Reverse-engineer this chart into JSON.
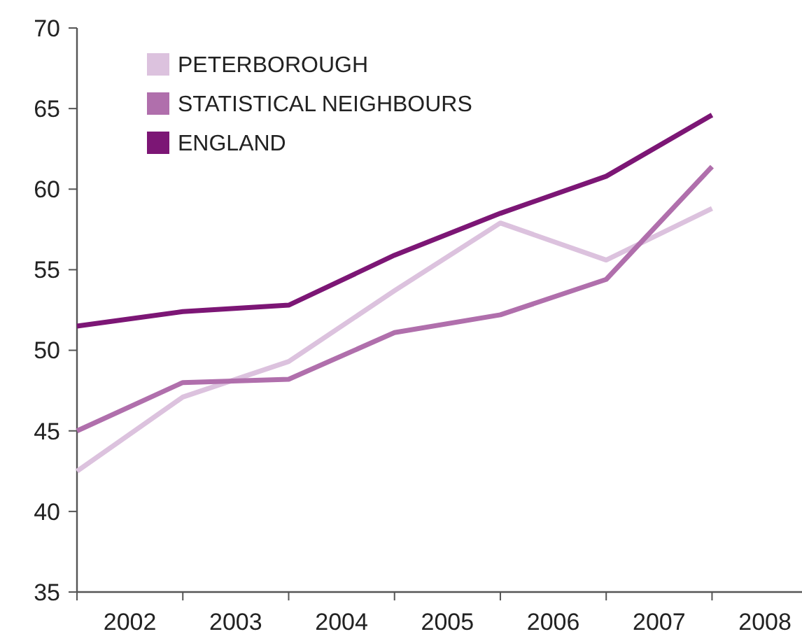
{
  "chart_data": {
    "type": "line",
    "x": [
      2002,
      2003,
      2004,
      2005,
      2006,
      2007,
      2008
    ],
    "series": [
      {
        "name": "PETERBOROUGH",
        "color": "#dcc2de",
        "values": [
          42.5,
          47.1,
          49.3,
          53.7,
          57.9,
          55.6,
          58.8
        ]
      },
      {
        "name": "STATISTICAL NEIGHBOURS",
        "color": "#b06fac",
        "values": [
          45.0,
          48.0,
          48.2,
          51.1,
          52.2,
          54.4,
          61.4
        ]
      },
      {
        "name": "ENGLAND",
        "color": "#7c1675",
        "values": [
          51.5,
          52.4,
          52.8,
          55.9,
          58.5,
          60.8,
          64.6
        ]
      }
    ],
    "xlim": [
      2002,
      2008.85
    ],
    "xticks": [
      {
        "value": 2002,
        "label": null
      },
      {
        "value": 2003,
        "label": null
      },
      {
        "value": 2004,
        "label": null
      },
      {
        "value": 2005,
        "label": null
      },
      {
        "value": 2006,
        "label": null
      },
      {
        "value": 2007,
        "label": null
      },
      {
        "value": 2008,
        "label": null
      },
      {
        "value": 2002.5,
        "label": "2002"
      },
      {
        "value": 2003.5,
        "label": "2003"
      },
      {
        "value": 2004.5,
        "label": "2004"
      },
      {
        "value": 2005.5,
        "label": "2005"
      },
      {
        "value": 2006.5,
        "label": "2006"
      },
      {
        "value": 2007.5,
        "label": "2007"
      },
      {
        "value": 2008.5,
        "label": "2008"
      }
    ],
    "ylim": [
      35,
      70
    ],
    "yticks": [
      35,
      40,
      45,
      50,
      55,
      60,
      65,
      70
    ],
    "grid": false,
    "legend": "top left",
    "marker": "none",
    "line_style": "solid"
  }
}
